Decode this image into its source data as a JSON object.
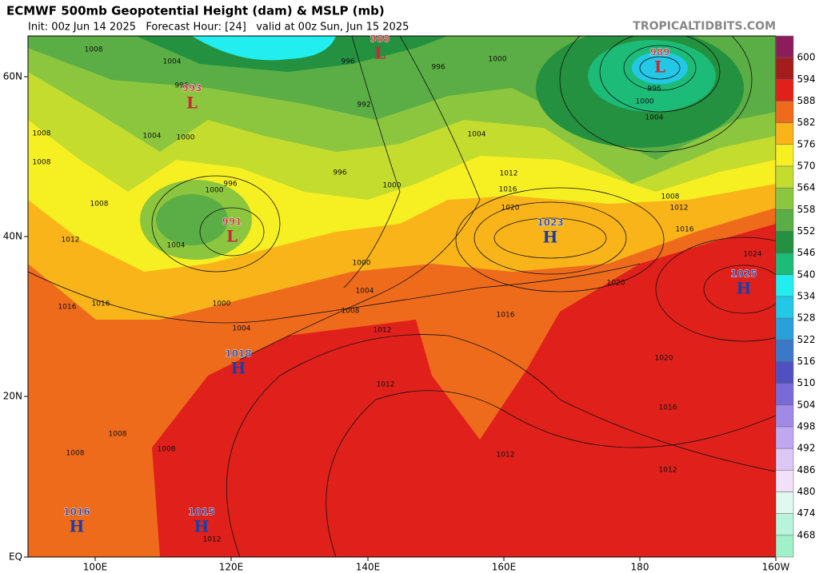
{
  "header": {
    "title": "ECMWF 500mb Geopotential Height (dam) & MSLP (mb)",
    "subtitle": "Init: 00z Jun 14 2025   Forecast Hour: [24]   valid at 00z Sun, Jun 15 2025",
    "credit": "TROPICALTIDBITS.COM"
  },
  "map": {
    "lat_labels": [
      "60N",
      "40N",
      "20N",
      "EQ"
    ],
    "lon_labels": [
      "100E",
      "120E",
      "140E",
      "160E",
      "180",
      "160W"
    ],
    "pressure_centers": [
      {
        "letter": "L",
        "value": "988"
      },
      {
        "letter": "L",
        "value": "993"
      },
      {
        "letter": "L",
        "value": "991"
      },
      {
        "letter": "L",
        "value": "989"
      },
      {
        "letter": "H",
        "value": "1023"
      },
      {
        "letter": "H",
        "value": "1025"
      },
      {
        "letter": "H",
        "value": "1018"
      },
      {
        "letter": "H",
        "value": "1016"
      },
      {
        "letter": "H",
        "value": "1015"
      }
    ],
    "isobar_labels": [
      "1008",
      "1004",
      "996",
      "996",
      "1000",
      "992",
      "996",
      "1000",
      "1004",
      "1008",
      "1008",
      "1008",
      "1012",
      "1000",
      "996",
      "1004",
      "1000",
      "1004",
      "1008",
      "1004",
      "1000",
      "1000",
      "996",
      "1004",
      "1012",
      "1016",
      "1020",
      "1020",
      "1016",
      "1012",
      "1012",
      "1024",
      "1016",
      "1012",
      "1008",
      "1000",
      "1004",
      "996",
      "1020",
      "1016",
      "1012",
      "1012",
      "1008",
      "1008",
      "1008",
      "1012",
      "1016",
      "1016"
    ]
  },
  "colorbar": {
    "labels": [
      600,
      594,
      588,
      582,
      576,
      570,
      564,
      558,
      552,
      546,
      540,
      534,
      528,
      522,
      516,
      510,
      504,
      498,
      492,
      486,
      480,
      474,
      468
    ],
    "colors": [
      "#8b1e5a",
      "#a51c1c",
      "#e0201b",
      "#ef6b1c",
      "#f9b41a",
      "#f6ef22",
      "#c4dc2e",
      "#8cc63f",
      "#5aae45",
      "#23913f",
      "#1dbb78",
      "#22eef0",
      "#22c8e6",
      "#2aa0d8",
      "#3c78c8",
      "#5050c0",
      "#7a6ad6",
      "#a08ae6",
      "#c0a8f0",
      "#dcc8f5",
      "#f0e0f8",
      "#e0f8f0",
      "#b8f4dc",
      "#a0f0c8"
    ]
  }
}
